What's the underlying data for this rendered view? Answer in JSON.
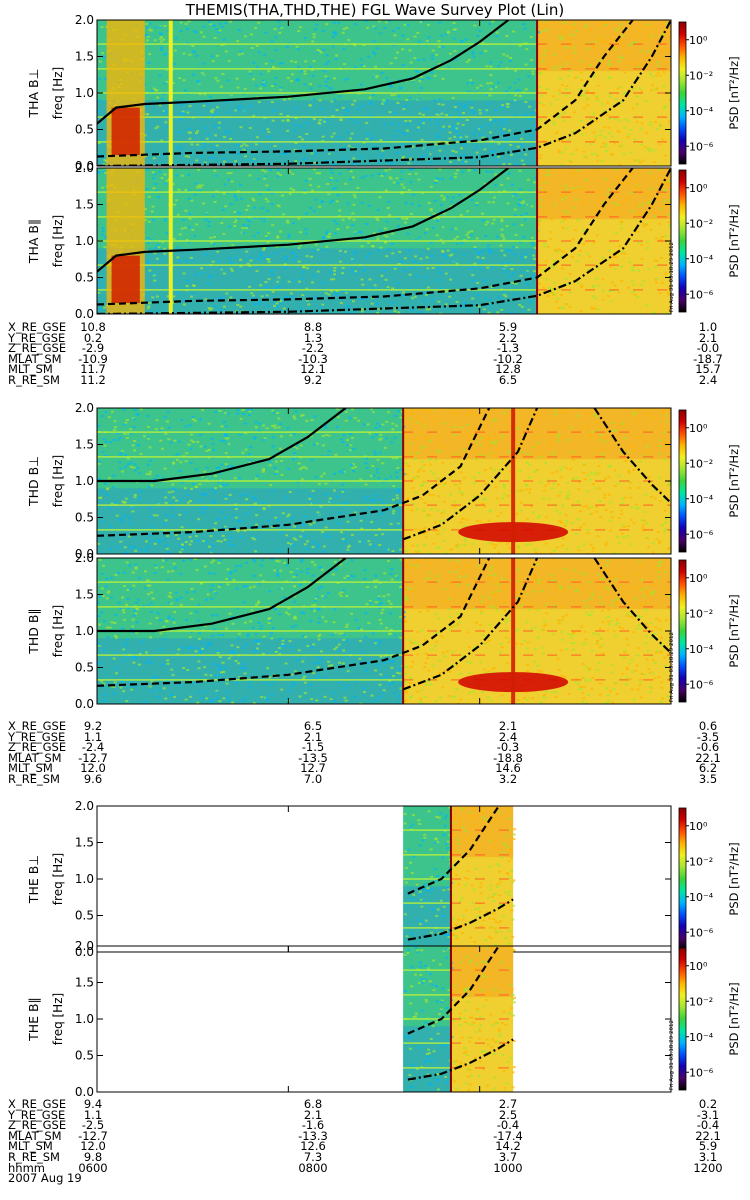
{
  "title": "THEMIS(THA,THD,THE) FGL Wave Survey Plot (Lin)",
  "colors": {
    "colormap": [
      "#000000",
      "#4a006a",
      "#1400b4",
      "#0050ff",
      "#00b4ff",
      "#00e6a0",
      "#3cd23c",
      "#a0e632",
      "#f0f020",
      "#ffb400",
      "#ff5000",
      "#d20000",
      "#8c0000"
    ]
  },
  "chart_data": {
    "type": "heatmap",
    "xlabel": "hhmm",
    "x_ticks": [
      "0600",
      "0800",
      "1000",
      "1200"
    ],
    "x_range": [
      6.0,
      12.0
    ],
    "date_label": "2007 Aug 19",
    "ylim": [
      0,
      2.0
    ],
    "y_ticks": [
      "0.0",
      "0.5",
      "1.0",
      "1.5",
      "2.0"
    ],
    "ylabel": "freq [Hz]",
    "colorbar": {
      "label": "PSD [nT²/Hz]",
      "ticks": [
        "10⁰",
        "10⁻²",
        "10⁻⁴",
        "10⁻⁶"
      ],
      "range_log10": [
        -7,
        1
      ]
    },
    "timestamp": "Fri Aug 31 03:18:29 2012",
    "panels": [
      {
        "label": "THA B⊥",
        "probe": "THA",
        "data_start": 6.0,
        "data_end": 12.0,
        "gap_at": 10.6,
        "left_burst": [
          6.1,
          6.5
        ],
        "curves": {
          "solid": [
            [
              6.0,
              0.58
            ],
            [
              6.2,
              0.8
            ],
            [
              6.5,
              0.85
            ],
            [
              7.0,
              0.88
            ],
            [
              8.0,
              0.95
            ],
            [
              8.8,
              1.05
            ],
            [
              9.3,
              1.2
            ],
            [
              9.7,
              1.45
            ],
            [
              10.0,
              1.7
            ],
            [
              10.3,
              2.0
            ]
          ],
          "dashed": [
            [
              6.0,
              0.13
            ],
            [
              7.0,
              0.18
            ],
            [
              8.0,
              0.2
            ],
            [
              9.0,
              0.24
            ],
            [
              10.0,
              0.35
            ],
            [
              10.6,
              0.5
            ],
            [
              11.0,
              0.9
            ],
            [
              11.3,
              1.5
            ],
            [
              11.6,
              2.0
            ]
          ],
          "dashdot": [
            [
              6.0,
              0.0
            ],
            [
              8.0,
              0.03
            ],
            [
              10.0,
              0.12
            ],
            [
              10.6,
              0.25
            ],
            [
              11.0,
              0.45
            ],
            [
              11.5,
              0.9
            ],
            [
              11.8,
              1.5
            ],
            [
              12.0,
              2.0
            ]
          ]
        }
      },
      {
        "label": "THA B∥",
        "probe": "THA",
        "data_start": 6.0,
        "data_end": 12.0,
        "gap_at": 10.6,
        "left_burst": [
          6.1,
          6.5
        ],
        "curves": {
          "solid": [
            [
              6.0,
              0.58
            ],
            [
              6.2,
              0.8
            ],
            [
              6.5,
              0.85
            ],
            [
              7.0,
              0.88
            ],
            [
              8.0,
              0.95
            ],
            [
              8.8,
              1.05
            ],
            [
              9.3,
              1.2
            ],
            [
              9.7,
              1.45
            ],
            [
              10.0,
              1.7
            ],
            [
              10.3,
              2.0
            ]
          ],
          "dashed": [
            [
              6.0,
              0.13
            ],
            [
              7.0,
              0.18
            ],
            [
              8.0,
              0.2
            ],
            [
              9.0,
              0.24
            ],
            [
              10.0,
              0.35
            ],
            [
              10.6,
              0.5
            ],
            [
              11.0,
              0.9
            ],
            [
              11.3,
              1.5
            ],
            [
              11.6,
              2.0
            ]
          ],
          "dashdot": [
            [
              6.0,
              0.0
            ],
            [
              8.0,
              0.03
            ],
            [
              10.0,
              0.12
            ],
            [
              10.6,
              0.25
            ],
            [
              11.0,
              0.45
            ],
            [
              11.5,
              0.9
            ],
            [
              11.8,
              1.5
            ],
            [
              12.0,
              2.0
            ]
          ]
        }
      },
      {
        "label": "THD B⊥",
        "probe": "THD",
        "data_start": 6.0,
        "data_end": 12.0,
        "gap_at": 9.2,
        "left_burst": null,
        "curves": {
          "solid": [
            [
              6.0,
              1.0
            ],
            [
              6.6,
              1.0
            ],
            [
              7.2,
              1.1
            ],
            [
              7.8,
              1.3
            ],
            [
              8.2,
              1.6
            ],
            [
              8.6,
              2.0
            ]
          ],
          "dashed": [
            [
              6.0,
              0.25
            ],
            [
              7.0,
              0.3
            ],
            [
              8.0,
              0.4
            ],
            [
              9.0,
              0.6
            ],
            [
              9.4,
              0.8
            ],
            [
              9.8,
              1.2
            ],
            [
              10.1,
              2.0
            ]
          ],
          "dashdot": [
            [
              9.2,
              0.2
            ],
            [
              9.6,
              0.4
            ],
            [
              10.0,
              0.8
            ],
            [
              10.4,
              1.4
            ],
            [
              10.6,
              2.0
            ]
          ],
          "dashdot2": [
            [
              11.2,
              2.0
            ],
            [
              11.5,
              1.4
            ],
            [
              11.8,
              0.95
            ],
            [
              12.0,
              0.7
            ]
          ]
        }
      },
      {
        "label": "THD B∥",
        "probe": "THD",
        "data_start": 6.0,
        "data_end": 12.0,
        "gap_at": 9.2,
        "left_burst": null,
        "curves": {
          "solid": [
            [
              6.0,
              1.0
            ],
            [
              6.6,
              1.0
            ],
            [
              7.2,
              1.1
            ],
            [
              7.8,
              1.3
            ],
            [
              8.2,
              1.6
            ],
            [
              8.6,
              2.0
            ]
          ],
          "dashed": [
            [
              6.0,
              0.25
            ],
            [
              7.0,
              0.3
            ],
            [
              8.0,
              0.4
            ],
            [
              9.0,
              0.6
            ],
            [
              9.4,
              0.8
            ],
            [
              9.8,
              1.2
            ],
            [
              10.1,
              2.0
            ]
          ],
          "dashdot": [
            [
              9.2,
              0.2
            ],
            [
              9.6,
              0.4
            ],
            [
              10.0,
              0.8
            ],
            [
              10.4,
              1.4
            ],
            [
              10.6,
              2.0
            ]
          ],
          "dashdot2": [
            [
              11.2,
              2.0
            ],
            [
              11.5,
              1.4
            ],
            [
              11.8,
              0.95
            ],
            [
              12.0,
              0.7
            ]
          ]
        }
      },
      {
        "label": "THE B⊥",
        "probe": "THE",
        "data_start": 9.2,
        "data_end": 10.35,
        "gap_at": 9.7,
        "left_burst": null,
        "curves": {
          "dashed": [
            [
              9.25,
              0.8
            ],
            [
              9.6,
              1.0
            ],
            [
              9.9,
              1.4
            ],
            [
              10.1,
              1.8
            ],
            [
              10.2,
              2.0
            ]
          ],
          "dashdot": [
            [
              9.25,
              0.17
            ],
            [
              9.6,
              0.25
            ],
            [
              9.9,
              0.4
            ],
            [
              10.2,
              0.6
            ],
            [
              10.35,
              0.72
            ]
          ]
        }
      },
      {
        "label": "THE B∥",
        "probe": "THE",
        "data_start": 9.2,
        "data_end": 10.35,
        "gap_at": 9.7,
        "left_burst": null,
        "curves": {
          "dashed": [
            [
              9.25,
              0.8
            ],
            [
              9.6,
              1.0
            ],
            [
              9.9,
              1.4
            ],
            [
              10.1,
              1.8
            ],
            [
              10.2,
              2.0
            ]
          ],
          "dashdot": [
            [
              9.25,
              0.17
            ],
            [
              9.6,
              0.25
            ],
            [
              9.9,
              0.4
            ],
            [
              10.2,
              0.6
            ],
            [
              10.35,
              0.72
            ]
          ]
        }
      }
    ]
  },
  "ephemeris": [
    {
      "rows": [
        {
          "name": "X_RE_GSE",
          "values": [
            "10.8",
            "8.8",
            "5.9",
            "1.0"
          ]
        },
        {
          "name": "Y_RE_GSE",
          "values": [
            "0.2",
            "1.3",
            "2.2",
            "2.1"
          ]
        },
        {
          "name": "Z_RE_GSE",
          "values": [
            "-2.9",
            "-2.2",
            "-1.3",
            "-0.0"
          ]
        },
        {
          "name": "MLAT_SM",
          "values": [
            "-10.9",
            "-10.3",
            "-10.2",
            "-18.7"
          ]
        },
        {
          "name": "MLT_SM",
          "values": [
            "11.7",
            "12.1",
            "12.8",
            "15.7"
          ]
        },
        {
          "name": "R_RE_SM",
          "values": [
            "11.2",
            "9.2",
            "6.5",
            "2.4"
          ]
        }
      ]
    },
    {
      "rows": [
        {
          "name": "X_RE_GSE",
          "values": [
            "9.2",
            "6.5",
            "2.1",
            "0.6"
          ]
        },
        {
          "name": "Y_RE_GSE",
          "values": [
            "1.1",
            "2.1",
            "2.4",
            "-3.5"
          ]
        },
        {
          "name": "Z_RE_GSE",
          "values": [
            "-2.4",
            "-1.5",
            "-0.3",
            "-0.6"
          ]
        },
        {
          "name": "MLAT_SM",
          "values": [
            "-12.7",
            "-13.5",
            "-18.8",
            "22.1"
          ]
        },
        {
          "name": "MLT_SM",
          "values": [
            "12.0",
            "12.7",
            "14.6",
            "6.2"
          ]
        },
        {
          "name": "R_RE_SM",
          "values": [
            "9.6",
            "7.0",
            "3.2",
            "3.5"
          ]
        }
      ]
    },
    {
      "rows": [
        {
          "name": "X_RE_GSE",
          "values": [
            "9.4",
            "6.8",
            "2.7",
            "0.2"
          ]
        },
        {
          "name": "Y_RE_GSE",
          "values": [
            "1.1",
            "2.1",
            "2.5",
            "-3.1"
          ]
        },
        {
          "name": "Z_RE_GSE",
          "values": [
            "-2.5",
            "-1.6",
            "-0.4",
            "-0.4"
          ]
        },
        {
          "name": "MLAT_SM",
          "values": [
            "-12.7",
            "-13.3",
            "-17.4",
            "22.1"
          ]
        },
        {
          "name": "MLT_SM",
          "values": [
            "12.0",
            "12.6",
            "14.2",
            "5.9"
          ]
        },
        {
          "name": "R_RE_SM",
          "values": [
            "9.8",
            "7.3",
            "3.7",
            "3.1"
          ]
        }
      ]
    }
  ]
}
